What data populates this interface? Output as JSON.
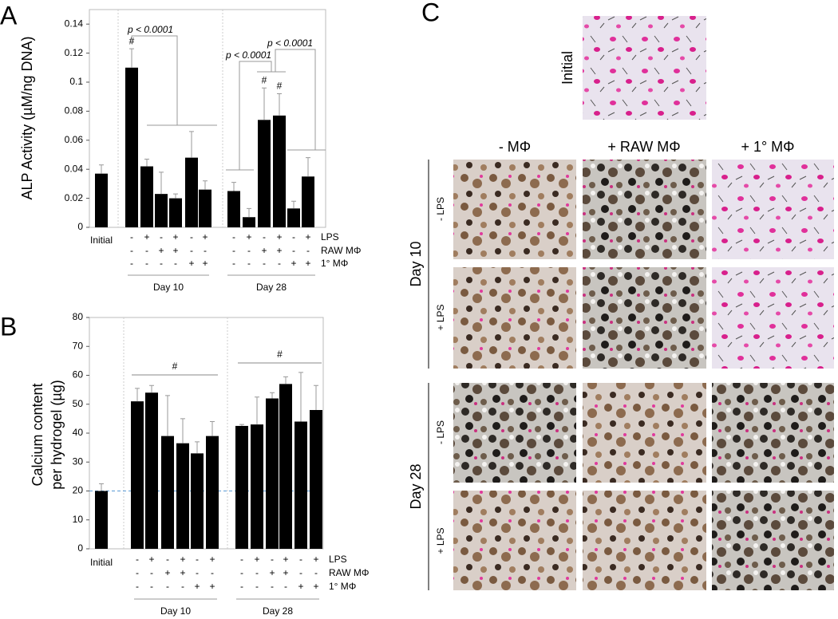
{
  "chart_data": [
    {
      "type": "bar",
      "panel": "A",
      "y_label": [
        "ALP Activity (µM/ng DNA)"
      ],
      "categories": [
        "Initial",
        null,
        null,
        null,
        null,
        null,
        null,
        null,
        null,
        null,
        null,
        null,
        null
      ],
      "values": [
        0.037,
        0.11,
        0.042,
        0.023,
        0.02,
        0.048,
        0.026,
        0.025,
        0.007,
        0.074,
        0.077,
        0.013,
        0.035
      ],
      "errors": [
        0.006,
        0.013,
        0.005,
        0.015,
        0.003,
        0.018,
        0.006,
        0.006,
        0.006,
        0.022,
        0.015,
        0.005,
        0.013
      ],
      "color": "#000000",
      "ylim": [
        0,
        0.15
      ],
      "yticks": [
        0,
        0.02,
        0.04,
        0.06,
        0.08,
        0.1,
        0.12,
        0.14
      ],
      "markers": [
        null,
        "#",
        null,
        null,
        null,
        null,
        null,
        null,
        null,
        "#",
        "#",
        null,
        null
      ],
      "p_labels": [
        "p < 0.0001",
        "p < 0.0001",
        "p < 0.0001"
      ],
      "conditions": [
        {
          "name": "LPS",
          "values": [
            "-",
            "+",
            "-",
            "+",
            "-",
            "+",
            "-",
            "+",
            "-",
            "+",
            "-",
            "+"
          ]
        },
        {
          "name": "RAW MΦ",
          "values": [
            "-",
            "-",
            "+",
            "+",
            "-",
            "-",
            "-",
            "-",
            "+",
            "+",
            "-",
            "-"
          ]
        },
        {
          "name": "1° MΦ",
          "values": [
            "-",
            "-",
            "-",
            "-",
            "+",
            "+",
            "-",
            "-",
            "-",
            "-",
            "+",
            "+"
          ]
        }
      ],
      "groups": [
        {
          "label": "Day 10"
        },
        {
          "label": "Day 28"
        }
      ]
    },
    {
      "type": "bar",
      "panel": "B",
      "y_label": [
        "Calcium content",
        "per hydrogel (µg)"
      ],
      "categories": [
        "Initial",
        null,
        null,
        null,
        null,
        null,
        null,
        null,
        null,
        null,
        null,
        null,
        null
      ],
      "values": [
        20,
        51,
        54,
        39,
        36.5,
        33,
        39,
        42.5,
        43,
        52,
        57,
        44,
        48
      ],
      "errors": [
        2.5,
        4.5,
        2.5,
        14,
        8.5,
        4,
        5,
        0.5,
        9.5,
        2,
        2.5,
        17,
        8.5
      ],
      "color": "#000000",
      "ylim": [
        0,
        80
      ],
      "yticks": [
        0,
        10,
        20,
        30,
        40,
        50,
        60,
        70,
        80
      ],
      "reference_line": {
        "color": "#5b9bd5",
        "dashed": true
      },
      "conditions": [
        {
          "name": "LPS",
          "values": [
            "-",
            "+",
            "-",
            "+",
            "-",
            "+",
            "-",
            "+",
            "-",
            "+",
            "-",
            "+"
          ]
        },
        {
          "name": "RAW MΦ",
          "values": [
            "-",
            "-",
            "+",
            "+",
            "-",
            "-",
            "-",
            "-",
            "+",
            "+",
            "-",
            "-"
          ]
        },
        {
          "name": "1° MΦ",
          "values": [
            "-",
            "-",
            "-",
            "-",
            "+",
            "+",
            "-",
            "-",
            "-",
            "-",
            "+",
            "+"
          ]
        }
      ],
      "groups": [
        {
          "label": "Day 10",
          "marker": "#"
        },
        {
          "label": "Day 28",
          "marker": "#"
        }
      ]
    }
  ],
  "panel_c": {
    "letter": "C",
    "initial_label": "Initial",
    "columns": [
      "- MΦ",
      "+ RAW MΦ",
      "+ 1° MΦ"
    ],
    "groups": [
      {
        "label": "Day 10",
        "rows": [
          "- LPS",
          "+ LPS"
        ]
      },
      {
        "label": "Day 28",
        "rows": [
          "- LPS",
          "+ LPS"
        ]
      }
    ]
  }
}
